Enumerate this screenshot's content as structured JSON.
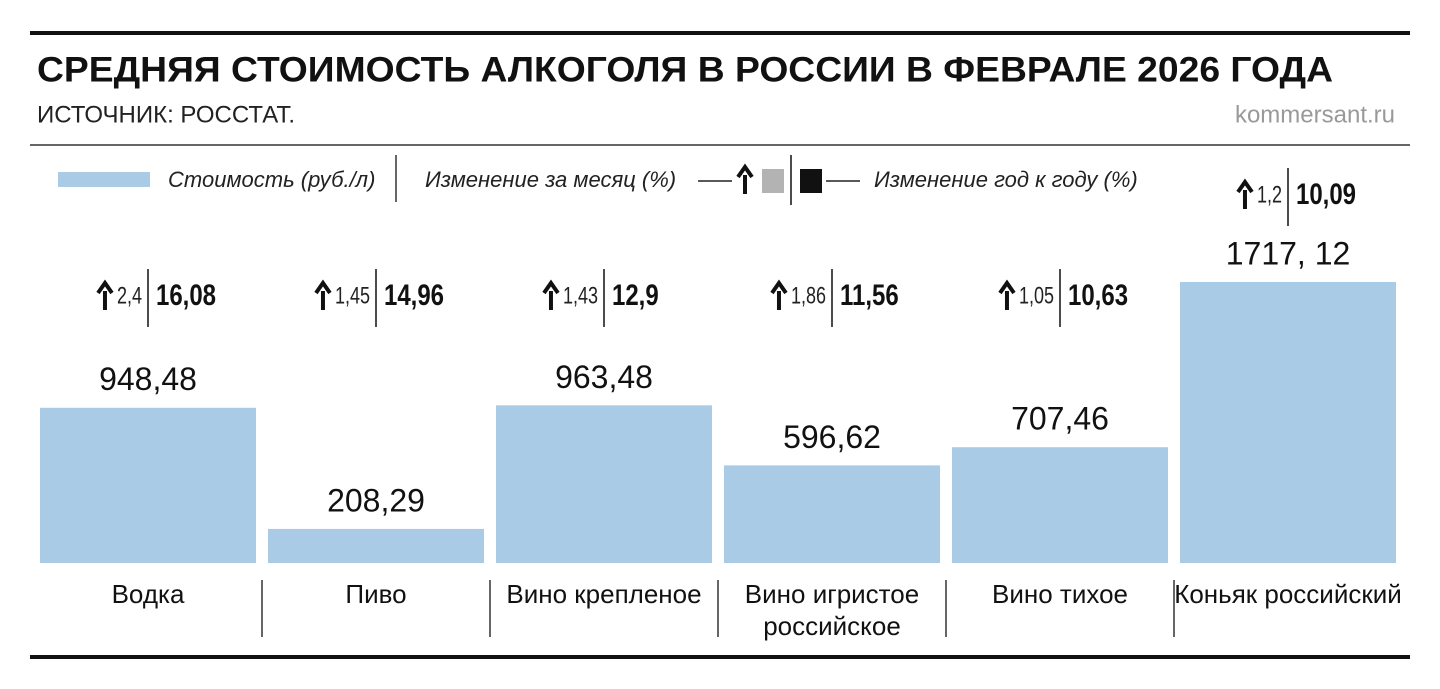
{
  "chart_data": {
    "type": "bar",
    "title": "СРЕДНЯЯ СТОИМОСТЬ АЛКОГОЛЯ В РОССИИ В ФЕВРАЛЕ 2026 ГОДА",
    "subtitle": "ИСТОЧНИК: РОССТАТ.",
    "source": "kommersant.ru",
    "categories": [
      "Водка",
      "Пиво",
      "Вино крепленое",
      "Вино игристое российское",
      "Вино тихое",
      "Коньяк российский"
    ],
    "series": [
      {
        "name": "Стоимость (руб./л)",
        "color": "#a9cbe6",
        "values": [
          948.48,
          208.29,
          963.48,
          596.62,
          707.46,
          1717.12
        ],
        "value_labels": [
          "948,48",
          "208,29",
          "963,48",
          "596,62",
          "707,46",
          "1717, 12"
        ]
      },
      {
        "name": "Изменение за месяц (%)",
        "color": "#b3b3b3",
        "values": [
          2.4,
          1.45,
          1.43,
          1.86,
          1.05,
          1.2
        ],
        "value_labels": [
          "2,4",
          "1,45",
          "1,43",
          "1,86",
          "1,05",
          "1,2"
        ]
      },
      {
        "name": "Изменение год к году (%)",
        "color": "#111111",
        "values": [
          16.08,
          14.96,
          12.9,
          11.56,
          10.63,
          10.09
        ],
        "value_labels": [
          "16,08",
          "14,96",
          "12,9",
          "11,56",
          "10,63",
          "10,09"
        ]
      }
    ]
  }
}
